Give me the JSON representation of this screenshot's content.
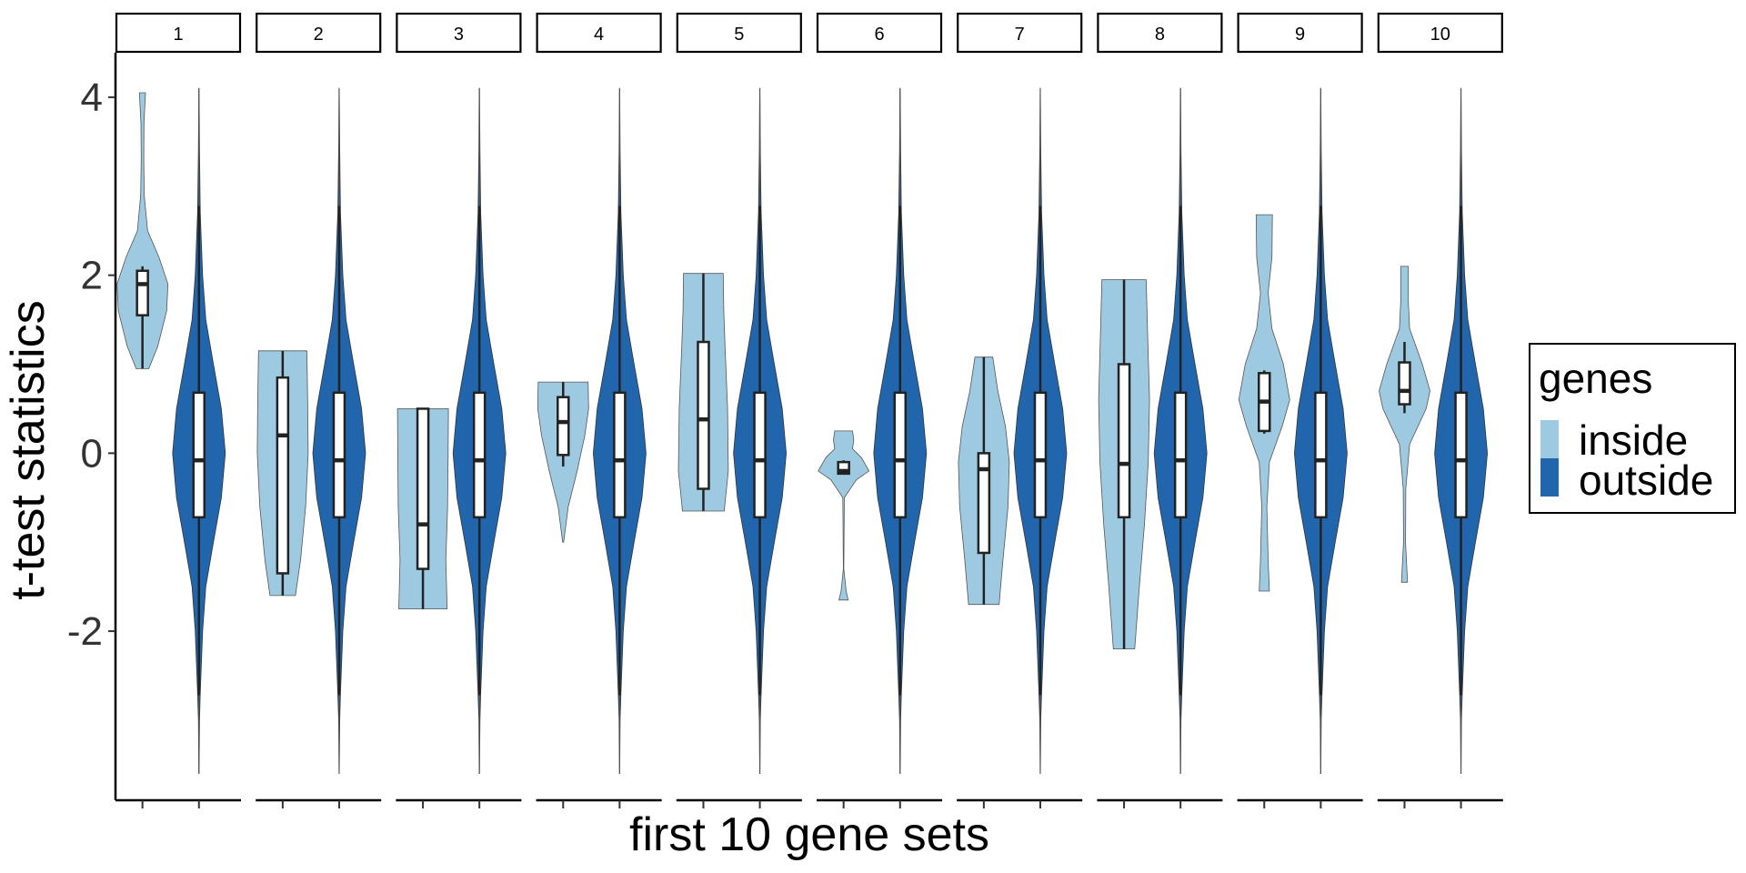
{
  "chart_data": {
    "type": "violin",
    "facets": [
      "1",
      "2",
      "3",
      "4",
      "5",
      "6",
      "7",
      "8",
      "9",
      "10"
    ],
    "xlabel": "first 10 gene sets",
    "ylabel": "t-test statistics",
    "ylim": [
      -3.9,
      4.5
    ],
    "yticks": [
      -2,
      0,
      2,
      4
    ],
    "legend": {
      "title": "genes",
      "position": "right",
      "entries": [
        {
          "label": "inside",
          "color": "#9ecae1"
        },
        {
          "label": "outside",
          "color": "#2166ac"
        }
      ]
    },
    "outside": {
      "min": -3.6,
      "max": 4.1,
      "q1": -0.72,
      "median": -0.08,
      "q3": 0.68,
      "whisker_low": -2.72,
      "whisker_high": 2.78,
      "profile": [
        [
          -3.6,
          0.005
        ],
        [
          -3.0,
          0.02
        ],
        [
          -2.7,
          0.05
        ],
        [
          -2.0,
          0.14
        ],
        [
          -1.5,
          0.26
        ],
        [
          -1.0,
          0.55
        ],
        [
          -0.5,
          0.85
        ],
        [
          0.0,
          1.0
        ],
        [
          0.5,
          0.85
        ],
        [
          1.0,
          0.55
        ],
        [
          1.5,
          0.26
        ],
        [
          2.0,
          0.14
        ],
        [
          2.7,
          0.05
        ],
        [
          3.4,
          0.02
        ],
        [
          4.1,
          0.005
        ]
      ]
    },
    "inside": [
      {
        "group": "1",
        "min": 0.95,
        "max": 4.05,
        "q1": 1.55,
        "median": 1.9,
        "q3": 2.05,
        "whisker_low": 0.95,
        "whisker_high": 2.1,
        "profile": [
          [
            0.95,
            0.25
          ],
          [
            1.2,
            0.6
          ],
          [
            1.6,
            0.95
          ],
          [
            1.9,
            1.0
          ],
          [
            2.2,
            0.65
          ],
          [
            2.5,
            0.2
          ],
          [
            2.9,
            0.07
          ],
          [
            3.3,
            0.05
          ],
          [
            3.7,
            0.06
          ],
          [
            4.05,
            0.12
          ]
        ]
      },
      {
        "group": "2",
        "min": -1.6,
        "max": 1.15,
        "q1": -1.35,
        "median": 0.2,
        "q3": 0.85,
        "whisker_low": -1.6,
        "whisker_high": 1.15,
        "profile": [
          [
            -1.6,
            0.5
          ],
          [
            -1.2,
            0.7
          ],
          [
            -0.6,
            0.9
          ],
          [
            0.0,
            1.0
          ],
          [
            0.6,
            0.98
          ],
          [
            1.15,
            0.95
          ]
        ]
      },
      {
        "group": "3",
        "min": -1.75,
        "max": 0.5,
        "q1": -1.3,
        "median": -0.8,
        "q3": 0.5,
        "whisker_low": -1.75,
        "whisker_high": 0.5,
        "profile": [
          [
            -1.75,
            0.95
          ],
          [
            -1.2,
            0.9
          ],
          [
            -0.6,
            0.97
          ],
          [
            0.0,
            0.99
          ],
          [
            0.5,
            1.0
          ]
        ]
      },
      {
        "group": "4",
        "min": -1.0,
        "max": 0.8,
        "q1": -0.02,
        "median": 0.35,
        "q3": 0.63,
        "whisker_low": -0.15,
        "whisker_high": 0.8,
        "profile": [
          [
            -1.0,
            0.02
          ],
          [
            -0.6,
            0.2
          ],
          [
            -0.2,
            0.55
          ],
          [
            0.2,
            0.85
          ],
          [
            0.5,
            1.0
          ],
          [
            0.8,
            0.98
          ]
        ]
      },
      {
        "group": "5",
        "min": -0.65,
        "max": 2.02,
        "q1": -0.4,
        "median": 0.38,
        "q3": 1.25,
        "whisker_low": -0.65,
        "whisker_high": 2.02,
        "profile": [
          [
            -0.65,
            0.82
          ],
          [
            -0.2,
            0.98
          ],
          [
            0.5,
            0.95
          ],
          [
            1.2,
            0.85
          ],
          [
            1.6,
            0.8
          ],
          [
            2.02,
            0.78
          ]
        ]
      },
      {
        "group": "6",
        "min": -1.65,
        "max": 0.25,
        "q1": -0.23,
        "median": -0.2,
        "q3": -0.1,
        "whisker_low": -0.23,
        "whisker_high": -0.08,
        "profile": [
          [
            -1.65,
            0.18
          ],
          [
            -1.55,
            0.1
          ],
          [
            -1.3,
            0.01
          ],
          [
            -0.5,
            0.03
          ],
          [
            -0.3,
            0.5
          ],
          [
            -0.2,
            1.0
          ],
          [
            -0.05,
            0.7
          ],
          [
            0.05,
            0.35
          ],
          [
            0.15,
            0.4
          ],
          [
            0.25,
            0.35
          ]
        ]
      },
      {
        "group": "7",
        "min": -1.7,
        "max": 1.08,
        "q1": -1.12,
        "median": -0.18,
        "q3": 0.0,
        "whisker_low": -1.7,
        "whisker_high": 1.08,
        "profile": [
          [
            -1.7,
            0.6
          ],
          [
            -1.2,
            0.75
          ],
          [
            -0.6,
            0.95
          ],
          [
            -0.1,
            1.0
          ],
          [
            0.3,
            0.85
          ],
          [
            0.7,
            0.55
          ],
          [
            1.08,
            0.35
          ]
        ]
      },
      {
        "group": "8",
        "min": -2.2,
        "max": 1.95,
        "q1": -0.72,
        "median": -0.12,
        "q3": 1.0,
        "whisker_low": -2.2,
        "whisker_high": 1.95,
        "profile": [
          [
            -2.2,
            0.42
          ],
          [
            -1.5,
            0.6
          ],
          [
            -0.8,
            0.8
          ],
          [
            -0.1,
            0.95
          ],
          [
            0.6,
            1.0
          ],
          [
            1.3,
            0.93
          ],
          [
            1.95,
            0.87
          ]
        ]
      },
      {
        "group": "9",
        "min": -1.55,
        "max": 2.68,
        "q1": 0.25,
        "median": 0.58,
        "q3": 0.9,
        "whisker_low": 0.22,
        "whisker_high": 0.93,
        "profile": [
          [
            -1.55,
            0.2
          ],
          [
            -1.2,
            0.15
          ],
          [
            -0.6,
            0.1
          ],
          [
            -0.1,
            0.2
          ],
          [
            0.3,
            0.7
          ],
          [
            0.6,
            1.0
          ],
          [
            1.0,
            0.75
          ],
          [
            1.4,
            0.3
          ],
          [
            1.8,
            0.15
          ],
          [
            2.2,
            0.3
          ],
          [
            2.68,
            0.32
          ]
        ]
      },
      {
        "group": "10",
        "min": -1.45,
        "max": 2.1,
        "q1": 0.55,
        "median": 0.7,
        "q3": 1.02,
        "whisker_low": 0.45,
        "whisker_high": 1.25,
        "profile": [
          [
            -1.45,
            0.12
          ],
          [
            -1.0,
            0.04
          ],
          [
            -0.4,
            0.05
          ],
          [
            0.1,
            0.2
          ],
          [
            0.5,
            0.85
          ],
          [
            0.7,
            1.0
          ],
          [
            1.0,
            0.7
          ],
          [
            1.4,
            0.2
          ],
          [
            1.7,
            0.15
          ],
          [
            2.1,
            0.15
          ]
        ]
      }
    ]
  }
}
